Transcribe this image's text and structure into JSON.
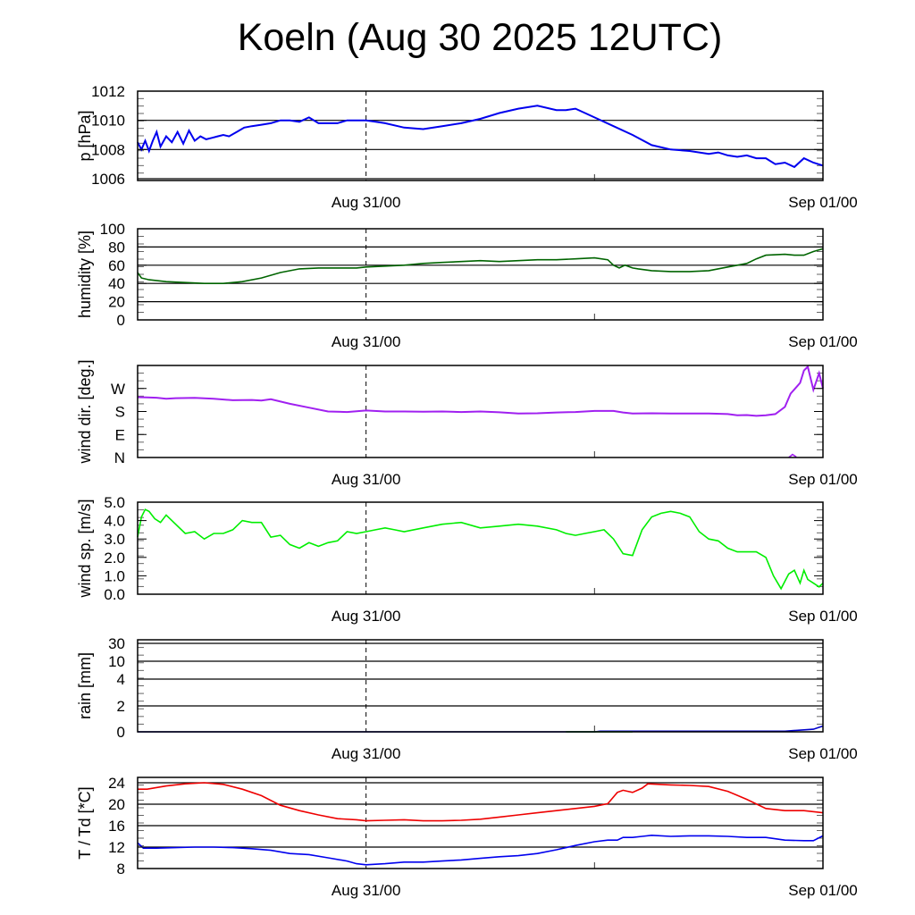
{
  "title": "Koeln (Aug 30 2025 12UTC)",
  "chart_data": [
    {
      "type": "line",
      "id": "pressure",
      "ylabel": "p [hPa]",
      "ylim": [
        1005.9,
        1012
      ],
      "yticks": [
        1006,
        1008,
        1010,
        1012
      ],
      "ytick_labels": [
        "1006",
        "1008",
        "1010",
        "1012"
      ],
      "gridlines": [
        1006,
        1008,
        1010
      ],
      "xlim_hours": [
        0,
        36
      ],
      "xtick_labels": [
        {
          "hour": 12,
          "label": "Aug 31/00"
        },
        {
          "hour": 36,
          "label": "Sep 01/00"
        }
      ],
      "series": [
        {
          "name": "pressure",
          "color": "#0000ee",
          "x": [
            0,
            0.2,
            0.4,
            0.6,
            0.8,
            1.0,
            1.2,
            1.5,
            1.8,
            2.1,
            2.4,
            2.7,
            3.0,
            3.3,
            3.6,
            3.9,
            4.2,
            4.5,
            4.8,
            5.2,
            5.6,
            6.0,
            6.5,
            7.0,
            7.5,
            8.0,
            8.5,
            9.0,
            9.5,
            10.0,
            10.5,
            11.0,
            11.5,
            12.0,
            12.5,
            13.0,
            14.0,
            15.0,
            16.0,
            17.0,
            18.0,
            19.0,
            20.0,
            21.0,
            22.0,
            22.5,
            23.0,
            23.5,
            24.0,
            25.0,
            26.0,
            27.0,
            28.0,
            29.0,
            30.0,
            30.5,
            31.0,
            31.5,
            32.0,
            32.5,
            33.0,
            33.5,
            34.0,
            34.5,
            35.0,
            35.5,
            36.0
          ],
          "y": [
            1008.5,
            1008.0,
            1008.6,
            1007.9,
            1008.6,
            1009.2,
            1008.2,
            1008.9,
            1008.5,
            1009.2,
            1008.4,
            1009.3,
            1008.6,
            1008.9,
            1008.7,
            1008.8,
            1008.9,
            1009.0,
            1008.9,
            1009.2,
            1009.5,
            1009.6,
            1009.7,
            1009.8,
            1010.0,
            1010.0,
            1009.9,
            1010.2,
            1009.8,
            1009.8,
            1009.8,
            1010.0,
            1010.0,
            1010.0,
            1009.9,
            1009.8,
            1009.5,
            1009.4,
            1009.6,
            1009.8,
            1010.1,
            1010.5,
            1010.8,
            1011.0,
            1010.7,
            1010.7,
            1010.8,
            1010.5,
            1010.2,
            1009.6,
            1009.0,
            1008.3,
            1008.0,
            1007.9,
            1007.7,
            1007.8,
            1007.6,
            1007.5,
            1007.6,
            1007.4,
            1007.4,
            1007.0,
            1007.1,
            1006.8,
            1007.4,
            1007.1,
            1006.9
          ]
        }
      ]
    },
    {
      "type": "line",
      "id": "humidity",
      "ylabel": "humidity [%]",
      "ylim": [
        0,
        100
      ],
      "yticks": [
        0,
        20,
        40,
        60,
        80,
        100
      ],
      "ytick_labels": [
        "0",
        "20",
        "40",
        "60",
        "80",
        "100"
      ],
      "gridlines": [
        20,
        40,
        60,
        80
      ],
      "xlim_hours": [
        0,
        36
      ],
      "xtick_labels": [
        {
          "hour": 12,
          "label": "Aug 31/00"
        },
        {
          "hour": 36,
          "label": "Sep 01/00"
        }
      ],
      "series": [
        {
          "name": "humidity",
          "color": "#006400",
          "x": [
            0,
            0.2,
            0.6,
            1.5,
            2.5,
            3.5,
            4.5,
            5.5,
            6.5,
            7.5,
            8.5,
            9.5,
            10.5,
            11.5,
            12.0,
            13.0,
            14.0,
            15.0,
            16.0,
            17.0,
            18.0,
            19.0,
            20.0,
            21.0,
            22.0,
            23.0,
            24.0,
            24.7,
            25.0,
            25.3,
            25.6,
            26.0,
            26.3,
            27.0,
            28.0,
            29.0,
            30.0,
            31.0,
            32.0,
            32.5,
            33.0,
            34.0,
            34.5,
            35.0,
            35.5,
            36.0
          ],
          "y": [
            52,
            46,
            44,
            42,
            41,
            40,
            40,
            42,
            46,
            52,
            56,
            57,
            57,
            57,
            58,
            59,
            60,
            62,
            63,
            64,
            65,
            64,
            65,
            66,
            66,
            67,
            68,
            66,
            60,
            57,
            60,
            57,
            56,
            54,
            53,
            53,
            54,
            58,
            62,
            67,
            71,
            72,
            71,
            71,
            75,
            78
          ]
        }
      ]
    },
    {
      "type": "scatter",
      "id": "wind_direction",
      "ylabel": "wind dir. [deg.]",
      "ylim": [
        0,
        360
      ],
      "yticks": [
        0,
        90,
        180,
        270
      ],
      "ytick_labels": [
        "N",
        "E",
        "S",
        "W"
      ],
      "gridlines": [],
      "xlim_hours": [
        0,
        36
      ],
      "xtick_labels": [
        {
          "hour": 12,
          "label": "Aug 31/00"
        },
        {
          "hour": 36,
          "label": "Sep 01/00"
        }
      ],
      "series": [
        {
          "name": "wind direction",
          "color": "#a020f0",
          "x": [
            0,
            0.5,
            1.0,
            1.5,
            2.0,
            3.0,
            4.0,
            5.0,
            6.0,
            6.5,
            7.0,
            8.0,
            9.0,
            10.0,
            11.0,
            12.0,
            13.0,
            14.0,
            15.0,
            16.0,
            17.0,
            18.0,
            19.0,
            20.0,
            21.0,
            22.0,
            23.0,
            24.0,
            25.0,
            25.5,
            26.0,
            27.0,
            28.0,
            29.0,
            30.0,
            31.0,
            31.5,
            32.0,
            32.5,
            33.0,
            33.5,
            34.0,
            34.3,
            34.6,
            34.8,
            35.0,
            35.2,
            35.5,
            35.8,
            36.0
          ],
          "y": [
            236,
            235,
            234,
            230,
            232,
            233,
            230,
            224,
            225,
            223,
            228,
            210,
            195,
            180,
            178,
            184,
            180,
            180,
            179,
            180,
            178,
            180,
            177,
            172,
            173,
            176,
            178,
            182,
            182,
            176,
            172,
            173,
            172,
            172,
            172,
            170,
            165,
            166,
            163,
            165,
            170,
            198,
            250,
            275,
            292,
            340,
            355,
            265,
            330,
            270
          ]
        },
        {
          "name": "wind direction (wrap)",
          "color": "#a020f0",
          "x": [
            34.2,
            34.4,
            34.6
          ],
          "y": [
            0,
            12,
            2
          ]
        }
      ]
    },
    {
      "type": "line",
      "id": "wind_speed",
      "ylabel": "wind sp. [m/s]",
      "ylim": [
        0,
        5
      ],
      "yticks": [
        0,
        1,
        2,
        3,
        4,
        5
      ],
      "ytick_labels": [
        "0.0",
        "1.0",
        "2.0",
        "3.0",
        "4.0",
        "5.0"
      ],
      "gridlines": [],
      "xlim_hours": [
        0,
        36
      ],
      "xtick_labels": [
        {
          "hour": 12,
          "label": "Aug 31/00"
        },
        {
          "hour": 36,
          "label": "Sep 01/00"
        }
      ],
      "series": [
        {
          "name": "wind speed",
          "color": "#00ee00",
          "x": [
            0,
            0.2,
            0.4,
            0.6,
            0.9,
            1.2,
            1.5,
            2.0,
            2.5,
            3.0,
            3.5,
            4.0,
            4.5,
            5.0,
            5.5,
            6.0,
            6.5,
            7.0,
            7.5,
            8.0,
            8.5,
            9.0,
            9.5,
            10.0,
            10.5,
            11.0,
            11.5,
            12.0,
            12.5,
            13.0,
            13.5,
            14.0,
            15.0,
            16.0,
            17.0,
            18.0,
            19.0,
            20.0,
            21.0,
            22.0,
            22.5,
            23.0,
            23.5,
            24.0,
            24.5,
            25.0,
            25.5,
            26.0,
            26.5,
            27.0,
            27.5,
            28.0,
            28.5,
            29.0,
            29.5,
            30.0,
            30.5,
            31.0,
            31.5,
            32.0,
            32.5,
            33.0,
            33.4,
            33.8,
            34.2,
            34.5,
            34.8,
            35.0,
            35.2,
            35.5,
            35.8,
            36.0
          ],
          "y": [
            3.1,
            4.2,
            4.6,
            4.5,
            4.1,
            3.9,
            4.3,
            3.8,
            3.3,
            3.4,
            3.0,
            3.3,
            3.3,
            3.5,
            4.0,
            3.9,
            3.9,
            3.1,
            3.2,
            2.7,
            2.5,
            2.8,
            2.6,
            2.8,
            2.9,
            3.4,
            3.3,
            3.4,
            3.5,
            3.6,
            3.5,
            3.4,
            3.6,
            3.8,
            3.9,
            3.6,
            3.7,
            3.8,
            3.7,
            3.5,
            3.3,
            3.2,
            3.3,
            3.4,
            3.5,
            3.0,
            2.2,
            2.1,
            3.5,
            4.2,
            4.4,
            4.5,
            4.4,
            4.2,
            3.4,
            3.0,
            2.9,
            2.5,
            2.3,
            2.3,
            2.3,
            2.0,
            1.0,
            0.3,
            1.1,
            1.3,
            0.6,
            1.3,
            0.8,
            0.6,
            0.4,
            0.6
          ]
        }
      ]
    },
    {
      "type": "line",
      "id": "rain",
      "ylabel": "rain [mm]",
      "scale": "nonlinear",
      "ylim": [
        0,
        30
      ],
      "yticks": [
        0,
        2,
        4,
        10,
        30
      ],
      "ytick_labels": [
        "0",
        "2",
        "4",
        "10",
        "30"
      ],
      "gridlines": [
        2,
        4,
        10,
        30
      ],
      "xlim_hours": [
        0,
        36
      ],
      "xtick_labels": [
        {
          "hour": 12,
          "label": "Aug 31/00"
        },
        {
          "hour": 36,
          "label": "Sep 01/00"
        }
      ],
      "series": [
        {
          "name": "rain accumulated",
          "color": "#0000cc",
          "x": [
            0,
            22.5,
            24.0,
            24.3,
            30.0,
            34.0,
            35.0,
            35.5,
            36.0
          ],
          "y": [
            0,
            0,
            0,
            0.05,
            0.05,
            0.05,
            0.15,
            0.2,
            0.45
          ]
        },
        {
          "name": "rain (model)",
          "color": "#00aa00",
          "x": [
            22.5,
            26.0
          ],
          "y": [
            0,
            0
          ]
        }
      ]
    },
    {
      "type": "line",
      "id": "temperature",
      "ylabel": "T / Td [*C]",
      "ylim": [
        8,
        25
      ],
      "yticks": [
        8,
        12,
        16,
        20,
        24
      ],
      "ytick_labels": [
        "8",
        "12",
        "16",
        "20",
        "24"
      ],
      "gridlines": [
        12,
        16,
        20,
        24
      ],
      "xlim_hours": [
        0,
        36
      ],
      "xtick_labels": [
        {
          "hour": 12,
          "label": "Aug 31/00"
        },
        {
          "hour": 36,
          "label": "Sep 01/00"
        }
      ],
      "series": [
        {
          "name": "temperature",
          "color": "#ee0000",
          "x": [
            0,
            0.5,
            1.5,
            2.5,
            3.5,
            4.5,
            5.5,
            6.5,
            7.5,
            8.5,
            9.5,
            10.5,
            11.5,
            12.0,
            13.0,
            14.0,
            15.0,
            16.0,
            17.0,
            18.0,
            19.0,
            20.0,
            21.0,
            22.0,
            24.0,
            24.7,
            25.2,
            25.5,
            26.0,
            26.5,
            26.8,
            28.0,
            29.0,
            30.0,
            31.0,
            32.0,
            33.0,
            34.0,
            35.0,
            36.0
          ],
          "y": [
            22.8,
            22.8,
            23.4,
            23.8,
            24.0,
            23.7,
            22.8,
            21.6,
            19.8,
            18.8,
            18.0,
            17.3,
            17.1,
            16.9,
            17.0,
            17.1,
            16.9,
            16.9,
            17.0,
            17.2,
            17.6,
            18.0,
            18.4,
            18.8,
            19.6,
            20.1,
            22.2,
            22.6,
            22.2,
            23.0,
            23.8,
            23.6,
            23.5,
            23.3,
            22.4,
            20.9,
            19.2,
            18.8,
            18.8,
            18.4
          ]
        },
        {
          "name": "dew point",
          "color": "#0000ee",
          "x": [
            0,
            0.3,
            1.0,
            2.0,
            3.0,
            4.0,
            5.0,
            6.0,
            7.0,
            8.0,
            9.0,
            10.0,
            11.0,
            11.5,
            12.0,
            13.0,
            14.0,
            15.0,
            16.0,
            17.0,
            18.0,
            19.0,
            20.0,
            21.0,
            22.0,
            23.0,
            24.0,
            24.7,
            25.2,
            25.5,
            26.0,
            26.5,
            27.0,
            28.0,
            29.0,
            30.0,
            31.0,
            32.0,
            33.0,
            34.0,
            35.0,
            35.5,
            36.0
          ],
          "y": [
            12.8,
            11.8,
            11.8,
            11.9,
            12.0,
            12.0,
            11.9,
            11.7,
            11.4,
            10.8,
            10.6,
            10.0,
            9.4,
            8.9,
            8.7,
            8.9,
            9.2,
            9.2,
            9.4,
            9.6,
            9.9,
            10.2,
            10.4,
            10.8,
            11.5,
            12.3,
            13.0,
            13.3,
            13.3,
            13.8,
            13.8,
            14.0,
            14.2,
            14.0,
            14.1,
            14.1,
            14.0,
            13.8,
            13.8,
            13.3,
            13.2,
            13.2,
            14.1
          ]
        }
      ]
    }
  ]
}
